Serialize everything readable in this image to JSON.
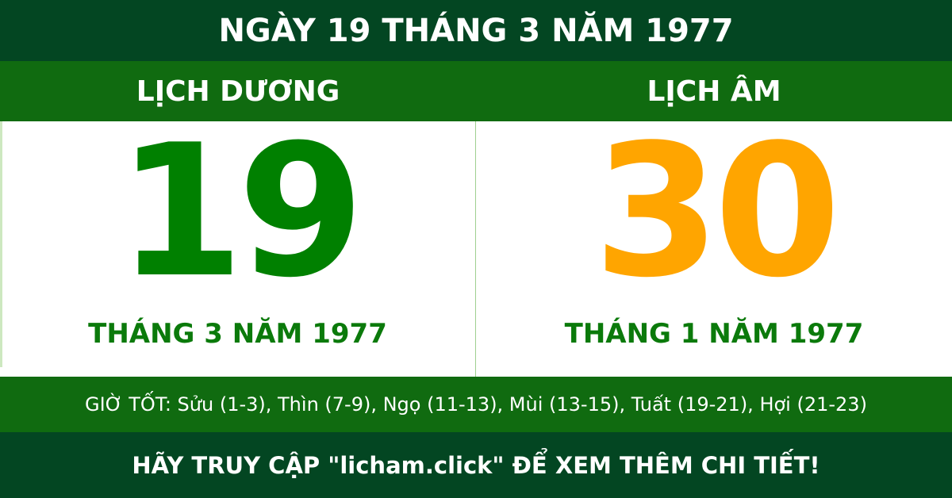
{
  "title": "NGÀY 19 THÁNG 3 NĂM 1977",
  "solar": {
    "label": "LỊCH DƯƠNG",
    "day": "19",
    "month_year": "THÁNG 3 NĂM 1977"
  },
  "lunar": {
    "label": "LỊCH ÂM",
    "day": "30",
    "month_year": "THÁNG 1 NĂM 1977"
  },
  "good_hours": "GIỜ TỐT: Sửu (1-3), Thìn (7-9), Ngọ (11-13), Mùi (13-15), Tuất (19-21), Hợi (21-23)",
  "footer": "HÃY TRUY CẬP \"licham.click\" ĐỂ XEM THÊM CHI TIẾT!",
  "colors": {
    "dark_green": "#034622",
    "green_band": "#106b10",
    "solar_day": "#008000",
    "lunar_day": "#FFA500"
  }
}
